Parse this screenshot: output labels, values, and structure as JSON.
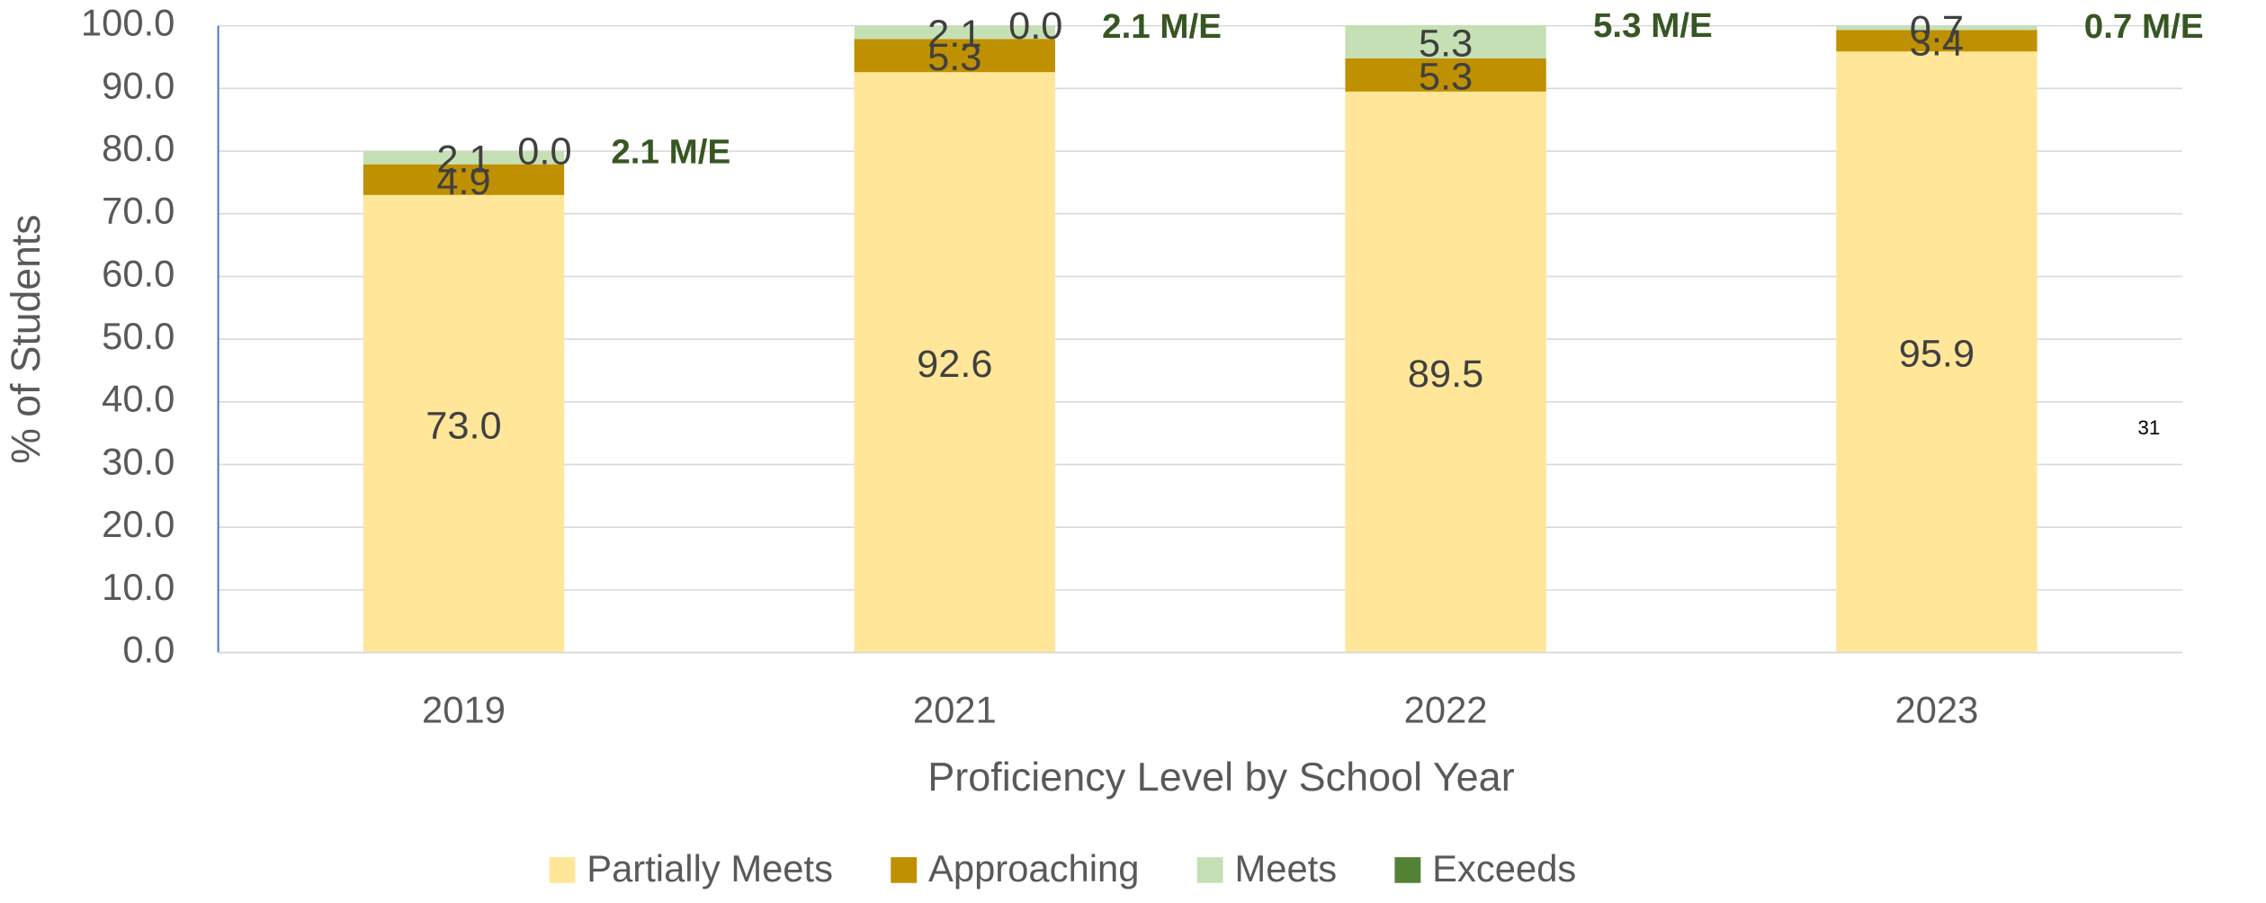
{
  "chart_data": {
    "type": "stacked_bar",
    "categories": [
      "2019",
      "2021",
      "2022",
      "2023"
    ],
    "series": [
      {
        "name": "Partially Meets",
        "color": "#ffe699",
        "values": [
          73.0,
          92.6,
          89.5,
          95.9
        ],
        "value_labels": [
          "73.0",
          "92.6",
          "89.5",
          "95.9"
        ]
      },
      {
        "name": "Approaching",
        "color": "#bf9000",
        "values": [
          4.9,
          5.3,
          5.3,
          3.4
        ],
        "value_labels": [
          "4.9",
          "5.3",
          "5.3",
          "3.4"
        ]
      },
      {
        "name": "Meets",
        "color": "#c5e0b4",
        "values": [
          2.1,
          2.1,
          5.3,
          0.7
        ],
        "value_labels": [
          "2.1",
          "2.1",
          "5.3",
          "0.7"
        ]
      },
      {
        "name": "Exceeds",
        "color": "#548235",
        "values": [
          0.0,
          0.0,
          0.0,
          0.0
        ],
        "value_labels": [
          "0.0",
          "0.0",
          null,
          null
        ]
      }
    ],
    "annotations": [
      "2.1 M/E",
      "2.1 M/E",
      "5.3 M/E",
      "0.7 M/E"
    ],
    "page_number": "31",
    "xlabel": "Proficiency Level by School Year",
    "ylabel": "% of Students",
    "ylim": [
      0,
      100
    ],
    "yticks": [
      {
        "value": 0,
        "label": "0.0"
      },
      {
        "value": 10,
        "label": "10.0"
      },
      {
        "value": 20,
        "label": "20.0"
      },
      {
        "value": 30,
        "label": "30.0"
      },
      {
        "value": 40,
        "label": "40.0"
      },
      {
        "value": 50,
        "label": "50.0"
      },
      {
        "value": 60,
        "label": "60.0"
      },
      {
        "value": 70,
        "label": "70.0"
      },
      {
        "value": 80,
        "label": "80.0"
      },
      {
        "value": 90,
        "label": "90.0"
      },
      {
        "value": 100,
        "label": "100.0"
      }
    ],
    "grid": true,
    "legend": "bottom"
  }
}
